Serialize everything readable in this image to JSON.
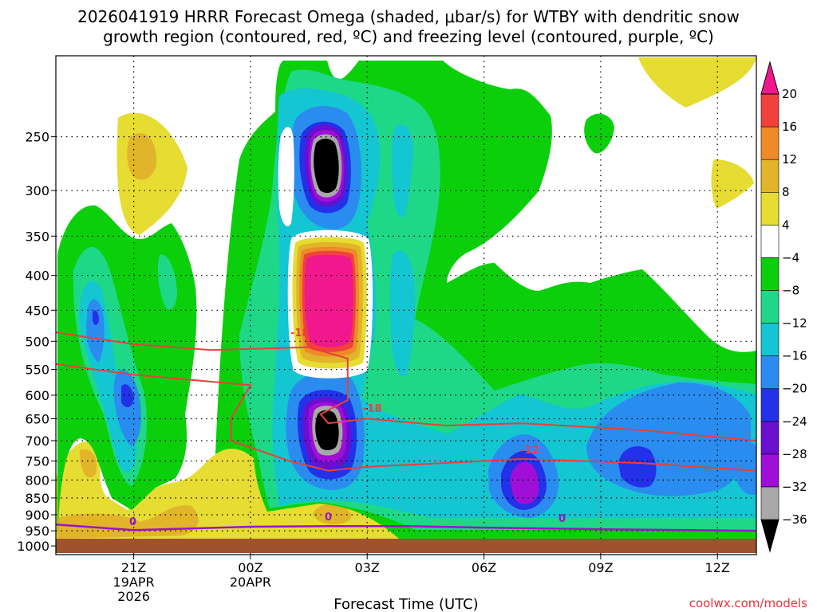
{
  "title_line1": "2026041919 HRRR Forecast Omega (shaded, μbar/s) for WTBY with dendritic snow",
  "title_line2": "growth region (contoured, red, ºC) and freezing level (contoured, purple, ºC)",
  "watermark": "coolwx.com/models",
  "chart_data": {
    "type": "heatmap",
    "title": "2026041919 HRRR Forecast Omega (shaded, μbar/s) for WTBY with dendritic snow growth region (contoured, red, ºC) and freezing level (contoured, purple, ºC)",
    "xlabel": "Forecast Time (UTC)",
    "ylabel": "",
    "xlim_hours": [
      -2.0,
      16.0
    ],
    "ylim_hpa": [
      1030,
      190
    ],
    "x_ticks": [
      {
        "hour": 0,
        "label": "21Z",
        "sub1": "19APR",
        "sub2": "2026"
      },
      {
        "hour": 3,
        "label": "00Z",
        "sub1": "20APR",
        "sub2": ""
      },
      {
        "hour": 6,
        "label": "03Z",
        "sub1": "",
        "sub2": ""
      },
      {
        "hour": 9,
        "label": "06Z",
        "sub1": "",
        "sub2": ""
      },
      {
        "hour": 12,
        "label": "09Z",
        "sub1": "",
        "sub2": ""
      },
      {
        "hour": 15,
        "label": "12Z",
        "sub1": "",
        "sub2": ""
      }
    ],
    "y_ticks": [
      250,
      300,
      350,
      400,
      450,
      500,
      550,
      600,
      650,
      700,
      750,
      800,
      850,
      900,
      950,
      1000
    ],
    "colorbar": {
      "levels": [
        -36,
        -32,
        -28,
        -24,
        -20,
        -16,
        -12,
        -8,
        -4,
        4,
        8,
        12,
        16,
        20
      ],
      "labels": [
        "20",
        "16",
        "12",
        "8",
        "4",
        "−4",
        "−8",
        "−12",
        "−16",
        "−20",
        "−24",
        "−28",
        "−32",
        "−36"
      ],
      "colors_bottom_to_top": [
        "#000000",
        "#a8a8a8",
        "#9f0fd8",
        "#6a0ed0",
        "#2331e8",
        "#2b8cf0",
        "#14c5d2",
        "#1ed888",
        "#0ccf0c",
        "#ffffff",
        "#e6dc32",
        "#e1b42a",
        "#ee8a28",
        "#f0413c",
        "#f0188c"
      ]
    },
    "omega_regions": [
      {
        "name": "upper-left-yellow",
        "value_range": [
          4,
          8
        ]
      },
      {
        "name": "upper-left-orange",
        "value_range": [
          8,
          12
        ]
      },
      {
        "name": "upper-right-yellow",
        "value_range": [
          4,
          8
        ]
      },
      {
        "name": "low-level-yellow",
        "value_range": [
          4,
          8
        ]
      },
      {
        "name": "low-level-orange",
        "value_range": [
          8,
          12
        ]
      },
      {
        "name": "main-ascent-green",
        "value_range": [
          -8,
          -4
        ]
      },
      {
        "name": "ascent-core-upper",
        "value_range": [
          -36,
          -32
        ],
        "hour": 4.8,
        "pressure_hpa": 300
      },
      {
        "name": "descent-core-mid",
        "value_range": [
          16,
          20
        ],
        "hour": 4.8,
        "pressure_hpa": 450
      },
      {
        "name": "ascent-core-700",
        "value_range": [
          -36,
          -32
        ],
        "hour": 4.8,
        "pressure_hpa": 690
      },
      {
        "name": "ascent-core-830",
        "value_range": [
          -32,
          -28
        ],
        "hour": 10.0,
        "pressure_hpa": 840
      },
      {
        "name": "ascent-core-800-later",
        "value_range": [
          -24,
          -20
        ],
        "hour": 13.0,
        "pressure_hpa": 800
      }
    ],
    "dgz_contours": [
      {
        "label": "-18",
        "color": "#e8403c",
        "points": [
          [
            -2.0,
            485
          ],
          [
            0.0,
            505
          ],
          [
            2.0,
            515
          ],
          [
            4.5,
            510
          ],
          [
            5.5,
            530
          ],
          [
            5.5,
            610
          ],
          [
            4.8,
            640
          ],
          [
            5.0,
            660
          ],
          [
            6.0,
            650
          ],
          [
            8.0,
            665
          ],
          [
            10.0,
            660
          ],
          [
            13.0,
            675
          ],
          [
            16.0,
            700
          ]
        ]
      },
      {
        "label": "-12",
        "color": "#e8403c",
        "points": [
          [
            -2.0,
            540
          ],
          [
            0.0,
            560
          ],
          [
            3.0,
            580
          ],
          [
            2.5,
            650
          ],
          [
            2.5,
            700
          ],
          [
            4.0,
            750
          ],
          [
            5.0,
            775
          ],
          [
            6.0,
            765
          ],
          [
            8.0,
            755
          ],
          [
            10.0,
            745
          ],
          [
            13.0,
            755
          ],
          [
            16.0,
            775
          ]
        ]
      }
    ],
    "freezing_level": {
      "label": "0",
      "color": "#9a14c8",
      "points": [
        [
          -2.0,
          930
        ],
        [
          0.0,
          948
        ],
        [
          3.0,
          937
        ],
        [
          5.0,
          935
        ],
        [
          7.0,
          935
        ],
        [
          9.0,
          940
        ],
        [
          12.0,
          945
        ],
        [
          16.0,
          950
        ]
      ]
    }
  }
}
